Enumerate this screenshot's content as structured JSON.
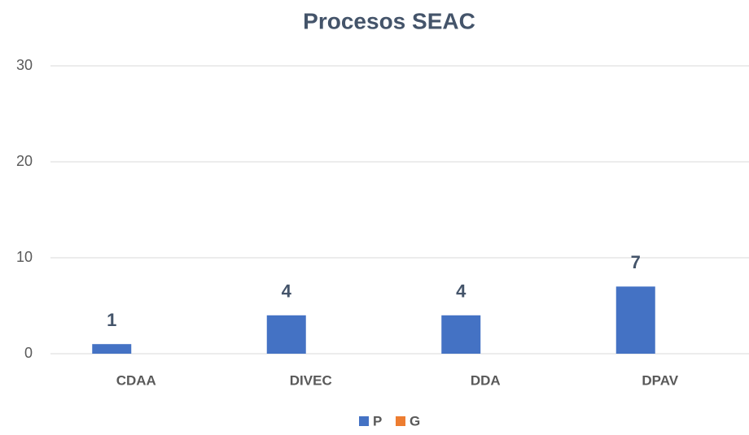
{
  "chart_data": {
    "type": "bar",
    "title": "Procesos SEAC",
    "categories": [
      "CDAA",
      "DIVEC",
      "DDA",
      "DPAV"
    ],
    "series": [
      {
        "name": "P",
        "color": "#4472c4",
        "values": [
          1,
          4,
          4,
          7
        ]
      },
      {
        "name": "G",
        "color": "#ed7d31",
        "values": [
          null,
          null,
          null,
          null
        ]
      }
    ],
    "ylim": [
      0,
      30
    ],
    "yticks": [
      0,
      10,
      20,
      30
    ],
    "grid": true,
    "legend": "bottom"
  }
}
